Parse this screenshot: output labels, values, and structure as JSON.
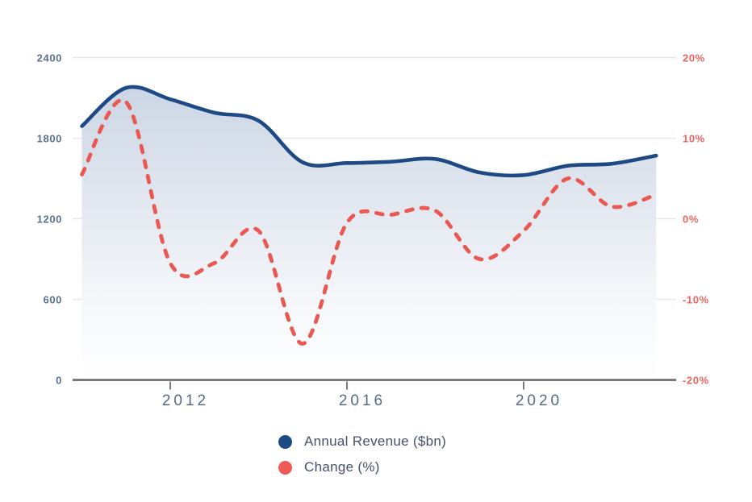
{
  "chart_data": {
    "type": "line",
    "title": "",
    "x": [
      2010,
      2011,
      2012,
      2013,
      2014,
      2015,
      2016,
      2017,
      2018,
      2019,
      2020,
      2021,
      2022,
      2023
    ],
    "series": [
      {
        "name": "Annual Revenue ($bn)",
        "axis": "left",
        "style": "solid-area",
        "color": "#1d4a85",
        "values": [
          1890,
          2175,
          2090,
          1990,
          1930,
          1620,
          1615,
          1625,
          1645,
          1545,
          1525,
          1595,
          1610,
          1670
        ]
      },
      {
        "name": "Change (%)",
        "axis": "right",
        "style": "dashed",
        "color": "#e95952",
        "values": [
          5.5,
          14.5,
          -5.5,
          -5.5,
          -1.5,
          -15.5,
          -0.5,
          0.5,
          1.0,
          -5.0,
          -1.5,
          5.0,
          1.5,
          3.0
        ]
      }
    ],
    "left_axis": {
      "tick_labels": [
        "2400",
        "1800",
        "1200",
        "600",
        "0"
      ],
      "tick_values": [
        2400,
        1800,
        1200,
        600,
        0
      ],
      "range": [
        0,
        2400
      ]
    },
    "right_axis": {
      "tick_labels": [
        "20%",
        "10%",
        "0%",
        "-10%",
        "-20%"
      ],
      "tick_values": [
        20,
        10,
        0,
        -10,
        -20
      ],
      "range": [
        -20,
        20
      ]
    },
    "x_axis": {
      "tick_labels": [
        "2012",
        "2016",
        "2020"
      ],
      "tick_values": [
        2012,
        2016,
        2020
      ]
    },
    "grid": true,
    "legend_position": "bottom",
    "area_gradient": {
      "top": "#c6d1e1",
      "mid": "#dfe5ee",
      "low": "#f6f8fb",
      "bottom": "#ffffff"
    }
  },
  "legend": {
    "items": [
      {
        "label": "Annual Revenue ($bn)",
        "color": "#1d4a85"
      },
      {
        "label": "Change (%)",
        "color": "#ee5a55"
      }
    ]
  },
  "colors": {
    "axis_line": "#7a7a7a",
    "gridline": "#e7e7e7",
    "left_label": "#5b708f",
    "right_label": "#ee6460",
    "x_label": "#566a8b",
    "legend_text": "#44506b",
    "background": "#ffffff"
  }
}
